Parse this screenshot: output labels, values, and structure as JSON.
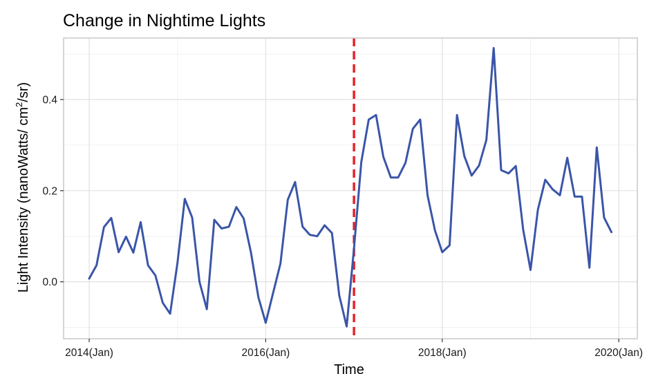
{
  "chart_data": {
    "type": "line",
    "title": "Change in Nightime Lights",
    "xlabel": "Time",
    "ylabel": "Light Intensity  (nanoWatts/ cm",
    "ylabel_superscript": "2",
    "ylabel_suffix": "/sr)",
    "x_tick_labels": [
      "2014(Jan)",
      "2016(Jan)",
      "2018(Jan)",
      "2020(Jan)"
    ],
    "x_tick_values": [
      2014,
      2016,
      2018,
      2020
    ],
    "y_tick_labels": [
      "0.0",
      "0.2",
      "0.4"
    ],
    "y_tick_values": [
      0.0,
      0.2,
      0.4
    ],
    "xlim": [
      2013.71,
      2020.21
    ],
    "ylim": [
      -0.125,
      0.535
    ],
    "grid": true,
    "line_color": "#3a55a8",
    "event_line": {
      "x": 2017.0,
      "color": "#e3242b",
      "style": "dashed"
    },
    "series": [
      {
        "x": [
          2014.0,
          2014.083,
          2014.167,
          2014.25,
          2014.333,
          2014.417,
          2014.5,
          2014.583,
          2014.667,
          2014.75,
          2014.833,
          2014.917,
          2015.0,
          2015.083,
          2015.167,
          2015.25,
          2015.333,
          2015.417,
          2015.5,
          2015.583,
          2015.667,
          2015.75,
          2015.833,
          2015.917,
          2016.0,
          2016.083,
          2016.167,
          2016.25,
          2016.333,
          2016.417,
          2016.5,
          2016.583,
          2016.667,
          2016.75,
          2016.833,
          2016.917,
          2017.0,
          2017.083,
          2017.167,
          2017.25,
          2017.333,
          2017.417,
          2017.5,
          2017.583,
          2017.667,
          2017.75,
          2017.833,
          2017.917,
          2018.0,
          2018.083,
          2018.167,
          2018.25,
          2018.333,
          2018.417,
          2018.5,
          2018.583,
          2018.667,
          2018.75,
          2018.833,
          2018.917,
          2019.0,
          2019.083,
          2019.167,
          2019.25,
          2019.333,
          2019.417,
          2019.5,
          2019.583,
          2019.667,
          2019.75,
          2019.833,
          2019.917
        ],
        "values": [
          0.007,
          0.036,
          0.12,
          0.14,
          0.065,
          0.099,
          0.064,
          0.131,
          0.036,
          0.014,
          -0.046,
          -0.07,
          0.041,
          0.182,
          0.141,
          0.0,
          -0.06,
          0.136,
          0.117,
          0.121,
          0.164,
          0.139,
          0.064,
          -0.034,
          -0.09,
          -0.025,
          0.04,
          0.18,
          0.219,
          0.121,
          0.103,
          0.1,
          0.124,
          0.107,
          -0.03,
          -0.098,
          0.073,
          0.263,
          0.356,
          0.366,
          0.274,
          0.229,
          0.229,
          0.261,
          0.336,
          0.356,
          0.19,
          0.113,
          0.065,
          0.08,
          0.366,
          0.276,
          0.233,
          0.255,
          0.311,
          0.513,
          0.245,
          0.238,
          0.254,
          0.114,
          0.026,
          0.158,
          0.224,
          0.203,
          0.19,
          0.272,
          0.187,
          0.187,
          0.031,
          0.295,
          0.141,
          0.109
        ]
      }
    ]
  }
}
